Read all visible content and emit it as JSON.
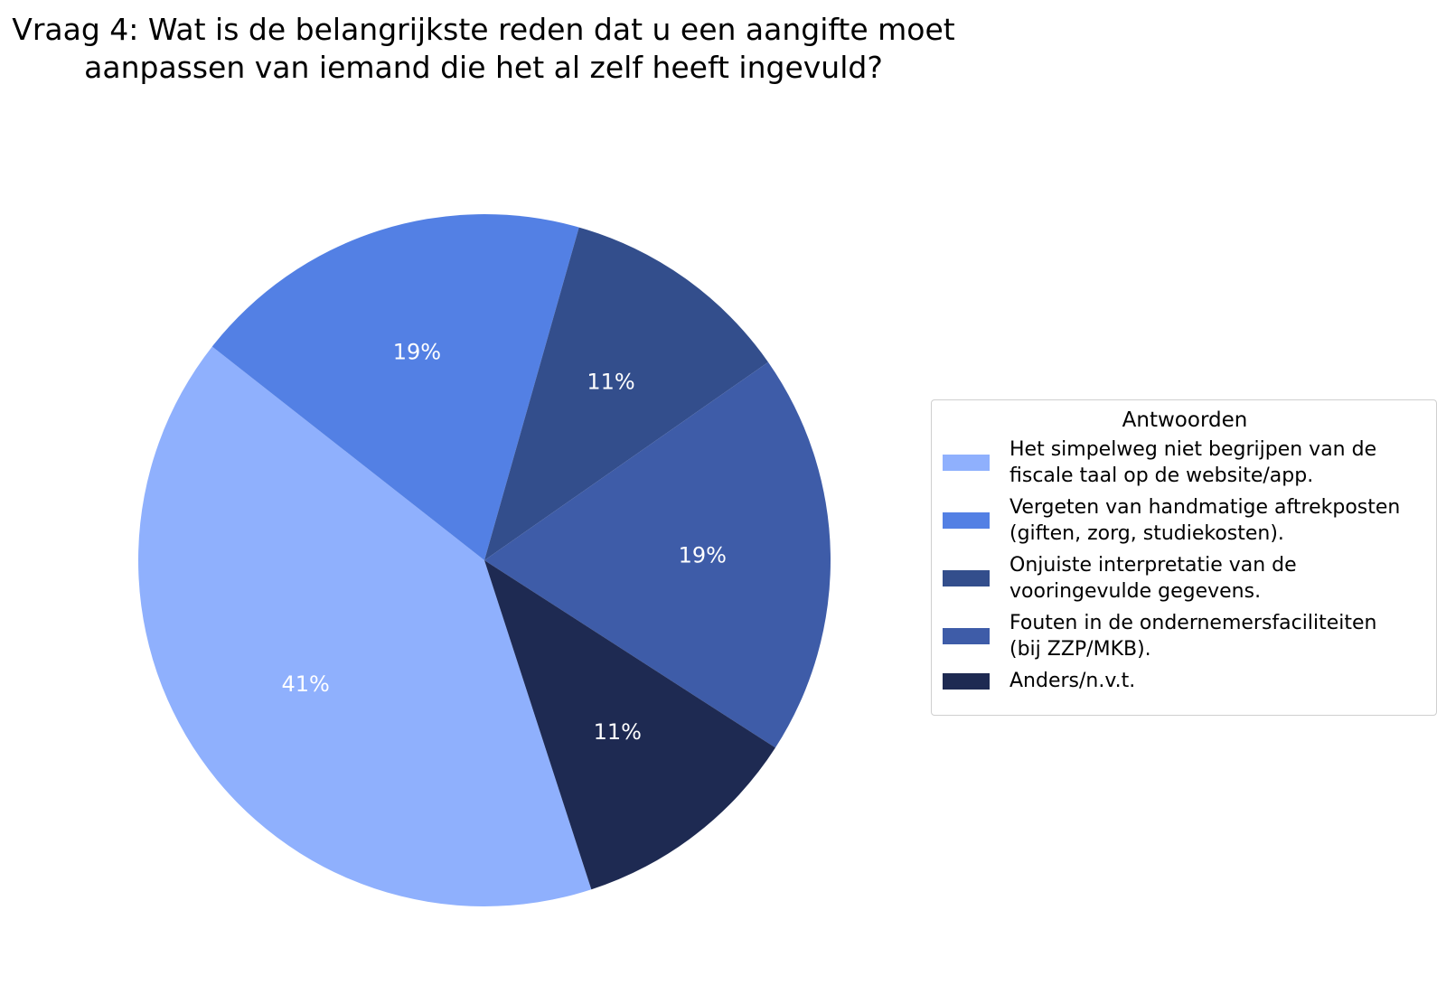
{
  "chart_data": {
    "type": "pie",
    "title_lines": [
      "Vraag 4: Wat is de belangrijkste reden dat u een aangifte moet",
      "aanpassen van iemand die het al zelf heeft ingevuld?"
    ],
    "legend": {
      "title": "Antwoorden",
      "placement": "right"
    },
    "slices": [
      {
        "label": "Het simpelweg niet begrijpen van de\nfiscale taal op de website/app.",
        "value": 41,
        "value_label": "41%",
        "color": "#8fb0fd"
      },
      {
        "label": "Vergeten van handmatige aftrekposten\n(giften, zorg, studiekosten).",
        "value": 19,
        "value_label": "19%",
        "color": "#5380e4"
      },
      {
        "label": "Onjuiste interpretatie van de\nvooringevulde gegevens.",
        "value": 11,
        "value_label": "11%",
        "color": "#334e8c"
      },
      {
        "label": "Fouten in de ondernemersfaciliteiten\n(bij ZZP/MKB).",
        "value": 19,
        "value_label": "19%",
        "color": "#3e5ca8"
      },
      {
        "label": "Anders/n.v.t.",
        "value": 11,
        "value_label": "11%",
        "color": "#1e2a52"
      }
    ]
  }
}
